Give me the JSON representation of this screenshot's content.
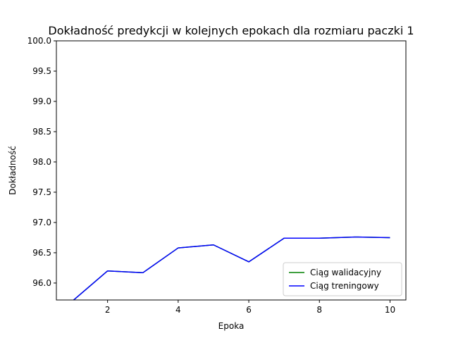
{
  "chart_data": {
    "type": "line",
    "title": "Dokładność predykcji w kolejnych epokach dla rozmiaru paczki 1",
    "xlabel": "Epoka",
    "ylabel": "Dokładność",
    "xlim": [
      0.55,
      10.45
    ],
    "ylim": [
      95.72,
      100.0
    ],
    "xticks": [
      2,
      4,
      6,
      8,
      10
    ],
    "yticks": [
      96.0,
      96.5,
      97.0,
      97.5,
      98.0,
      98.5,
      99.0,
      99.5,
      100.0
    ],
    "ytick_labels": [
      "96.0",
      "96.5",
      "97.0",
      "97.5",
      "98.0",
      "98.5",
      "99.0",
      "99.5",
      "100.0"
    ],
    "grid": false,
    "legend_position": "lower-right",
    "x": [
      1,
      2,
      3,
      4,
      5,
      6,
      7,
      8,
      9,
      10
    ],
    "series": [
      {
        "name": "Ciąg walidacyjny",
        "color": "#008000",
        "values": [
          95.7,
          96.2,
          96.17,
          96.58,
          96.63,
          96.35,
          96.74,
          96.74,
          96.76,
          96.75
        ]
      },
      {
        "name": "Ciąg treningowy",
        "color": "#0000ff",
        "values": [
          95.7,
          96.2,
          96.17,
          96.58,
          96.63,
          96.35,
          96.74,
          96.74,
          96.76,
          96.75
        ]
      }
    ]
  }
}
